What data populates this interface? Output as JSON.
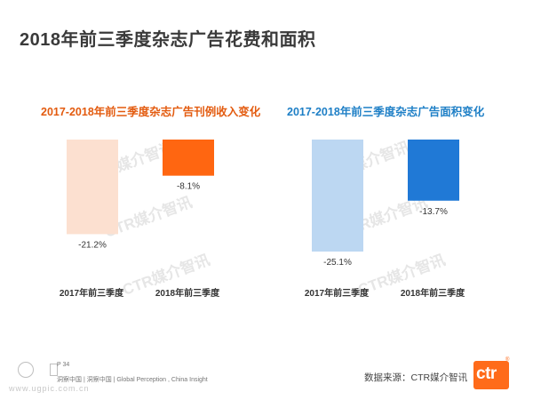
{
  "page_title": "2018年前三季度杂志广告花费和面积",
  "chart_data": [
    {
      "type": "bar",
      "title": "2017-2018年前三季度杂志广告刊例收入变化",
      "title_color": "#e35b0f",
      "categories": [
        "2017年前三季度",
        "2018年前三季度"
      ],
      "values": [
        -21.2,
        -8.1
      ],
      "value_labels": [
        "-21.2%",
        "-8.1%"
      ],
      "colors": [
        "#fce0d0",
        "#ff6611"
      ],
      "ylim": [
        -25.1,
        0
      ]
    },
    {
      "type": "bar",
      "title": "2017-2018年前三季度杂志广告面积变化",
      "title_color": "#1e7fc6",
      "categories": [
        "2017年前三季度",
        "2018年前三季度"
      ],
      "values": [
        -25.1,
        -13.7
      ],
      "value_labels": [
        "-25.1%",
        "-13.7%"
      ],
      "colors": [
        "#bcd7f2",
        "#2079d6"
      ],
      "ylim": [
        -25.1,
        0
      ]
    }
  ],
  "watermark_text": "CTR媒介智讯",
  "footer": {
    "page_number": "P 34",
    "slogan": "洞察中国 | 洞察中国 | Global Perception , China Insight",
    "site": "www.ugpic.com.cn",
    "source": "数据来源：CTR媒介智讯",
    "logo_text": "ctr",
    "registered_mark": "®"
  }
}
